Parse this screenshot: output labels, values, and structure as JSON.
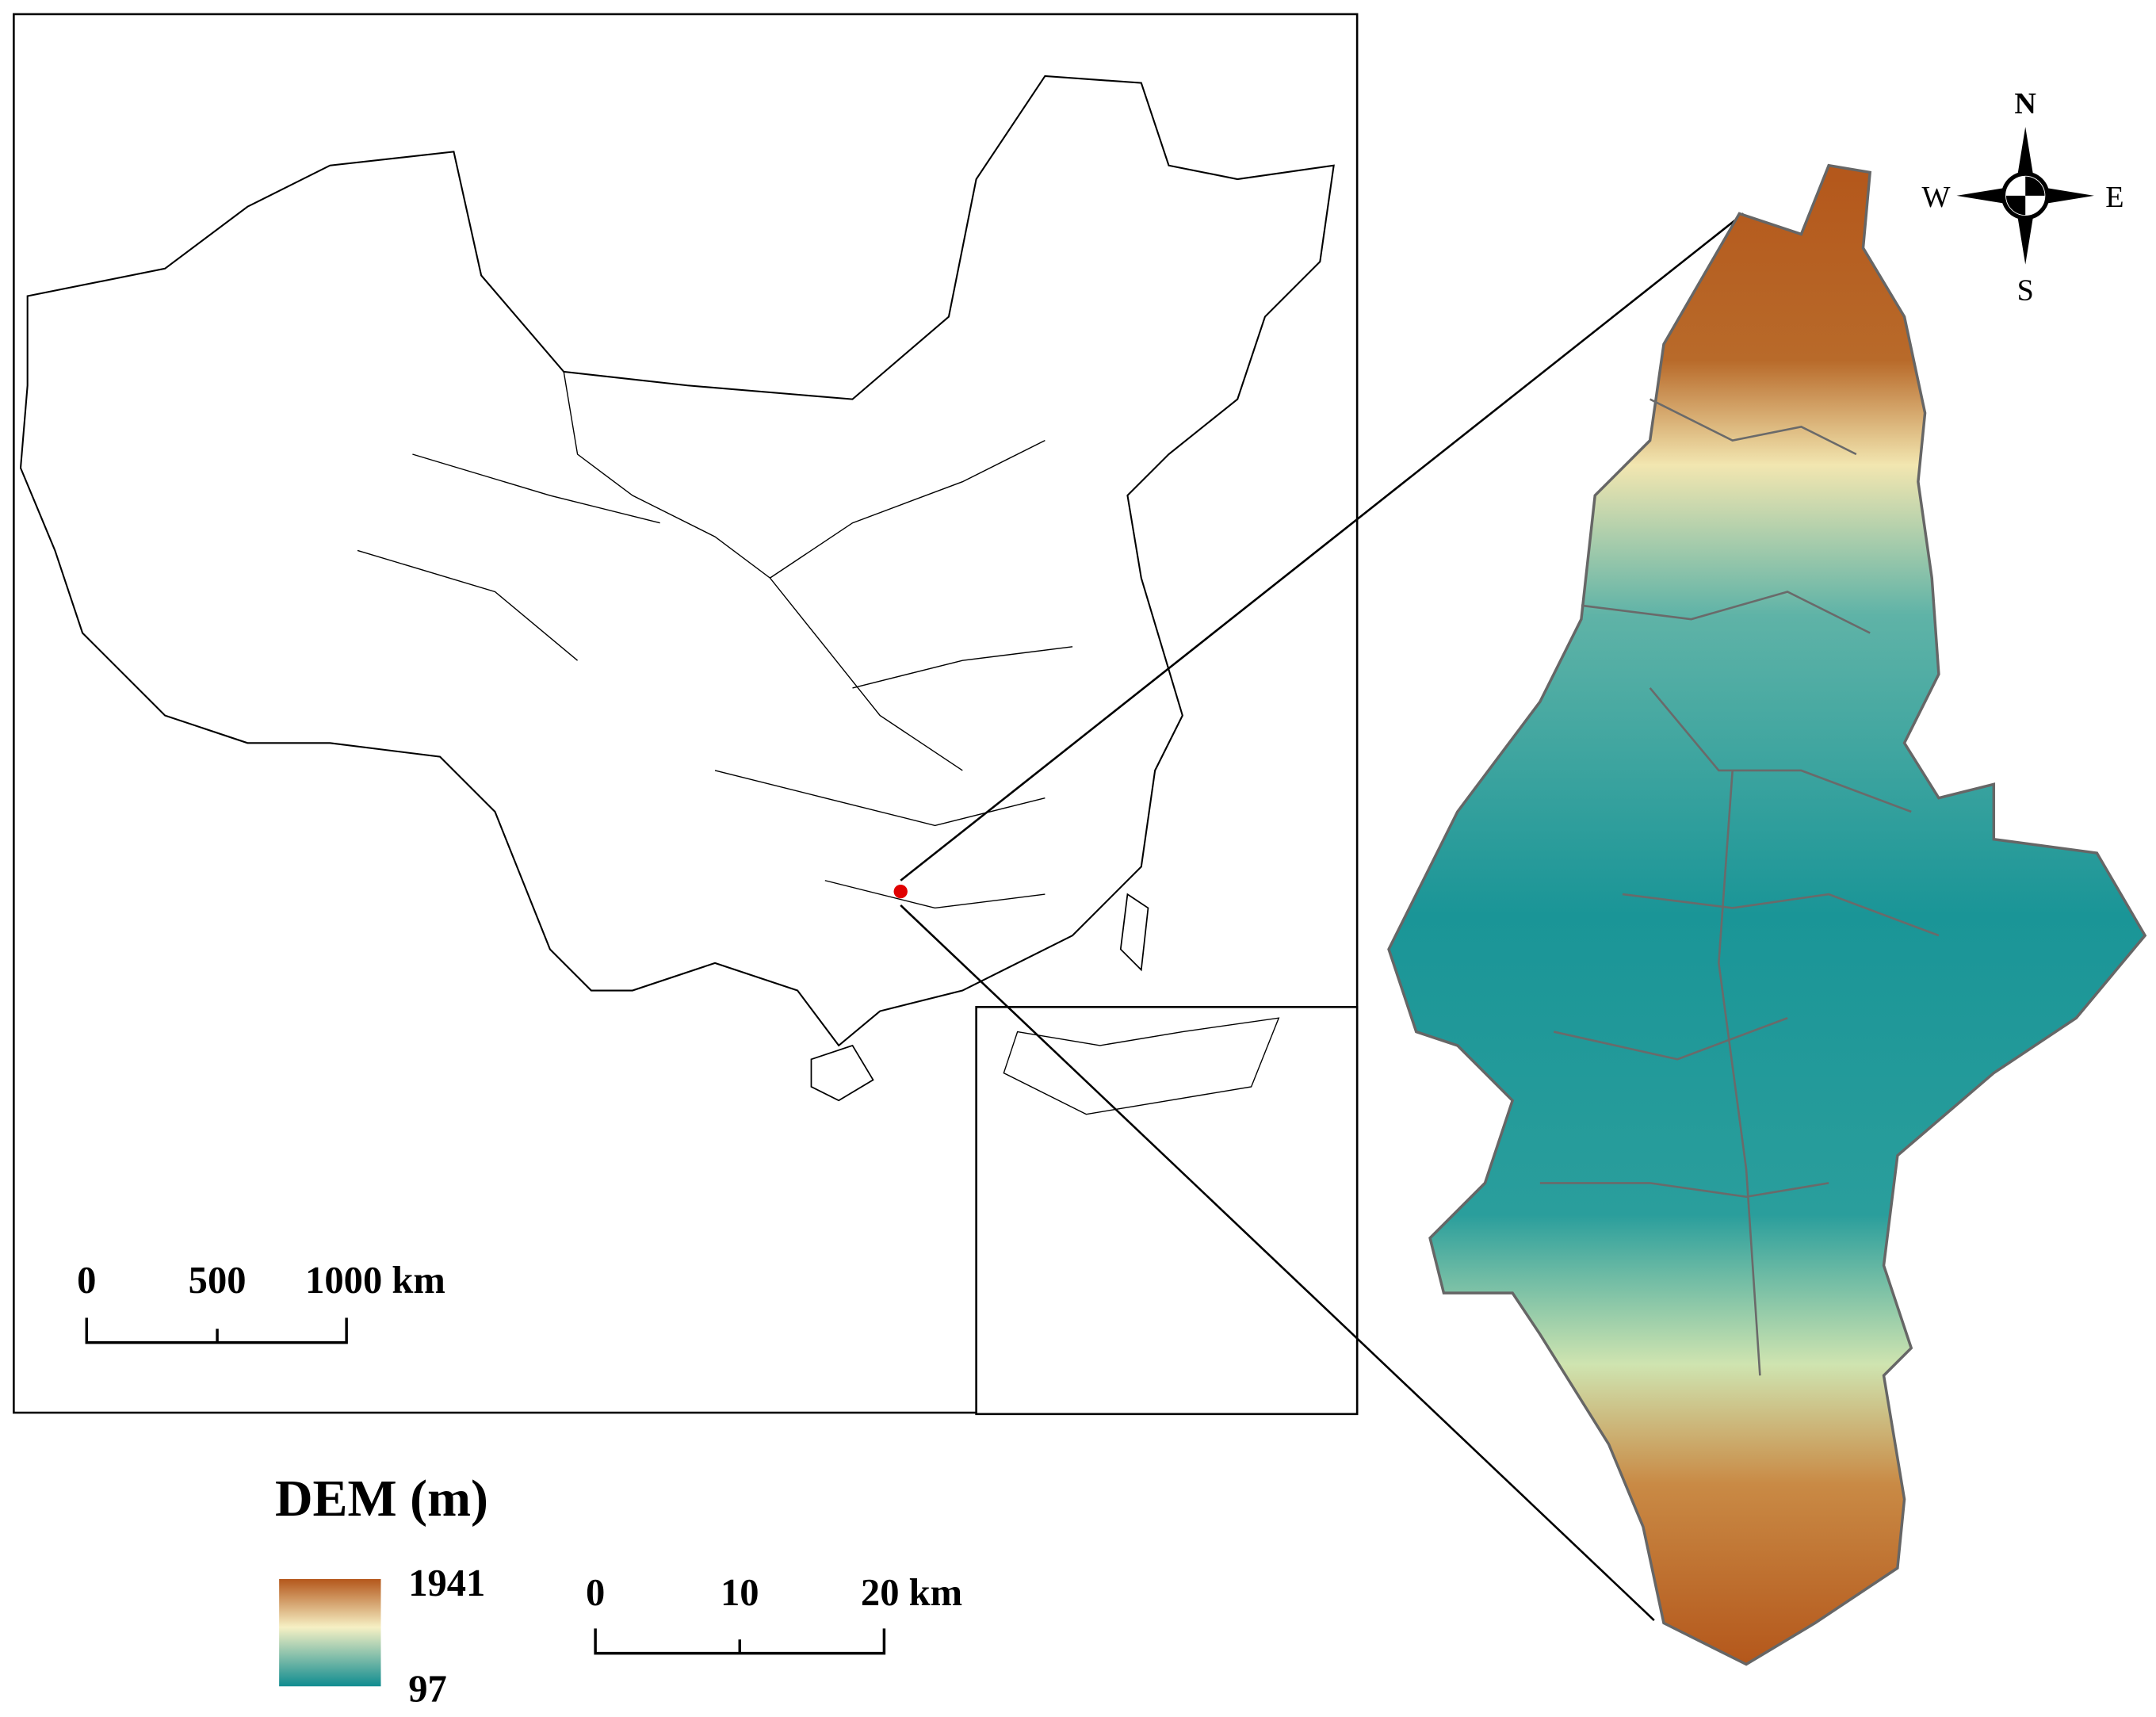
{
  "map": {
    "compass": {
      "north": "N",
      "south": "S",
      "east": "E",
      "west": "W"
    },
    "china_scale_bar": {
      "labels": [
        "0",
        "500",
        "1000 km"
      ]
    },
    "legend": {
      "title": "DEM (m)",
      "max": "1941",
      "min": "97"
    },
    "study_scale_bar": {
      "labels": [
        "0",
        "10",
        "20 km"
      ]
    }
  }
}
